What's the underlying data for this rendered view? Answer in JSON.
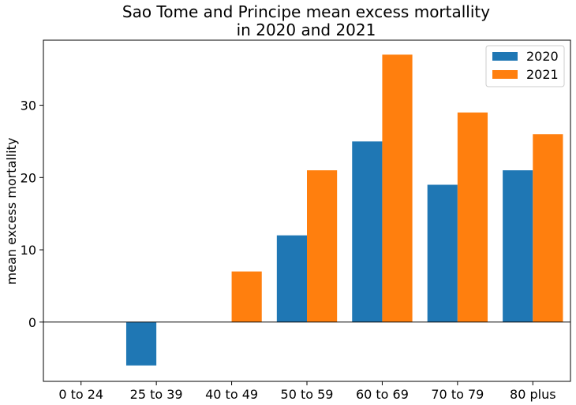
{
  "chart_data": {
    "type": "bar",
    "title": [
      "Sao Tome and Principe mean excess mortallity",
      "in 2020 and 2021"
    ],
    "xlabel": "",
    "ylabel": "mean excess mortallity",
    "categories": [
      "0 to 24",
      "25 to 39",
      "40 to 49",
      "50 to 59",
      "60 to 69",
      "70 to 79",
      "80 plus"
    ],
    "series": [
      {
        "name": "2020",
        "color": "#1f77b4",
        "values": [
          0,
          -6,
          0,
          12,
          25,
          19,
          21
        ]
      },
      {
        "name": "2021",
        "color": "#ff7f0e",
        "values": [
          0,
          0,
          7,
          21,
          37,
          29,
          26
        ]
      }
    ],
    "ylim": [
      -8.2,
      39.0
    ],
    "yticks": [
      0,
      10,
      20,
      30
    ],
    "zero_line": true,
    "grid": false,
    "legend": "top-right"
  }
}
